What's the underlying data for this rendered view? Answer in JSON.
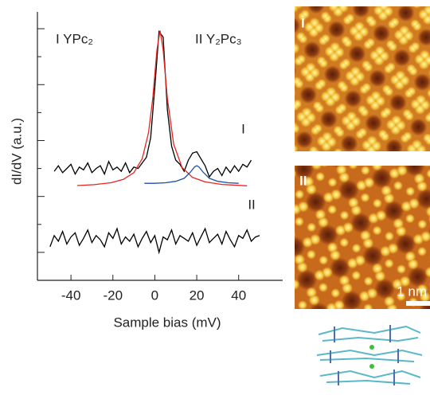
{
  "chart_data": {
    "type": "line",
    "xlabel": "Sample bias (mV)",
    "ylabel": "dI/dV (a.u.)",
    "annotations": [
      "I YPc₂",
      "II Y₂Pc₃"
    ],
    "xlim": [
      -56,
      61
    ],
    "xticks": [
      -40,
      -20,
      0,
      20,
      40
    ],
    "ylim": [
      0,
      9.6
    ],
    "yticks": [
      1,
      2,
      3,
      4,
      5,
      6,
      7,
      8,
      9
    ],
    "series": [
      {
        "name": "I",
        "color": "#000000",
        "x": [
          -48,
          -46,
          -44,
          -42,
          -40,
          -38,
          -36,
          -34,
          -32,
          -30,
          -28,
          -26,
          -24,
          -22,
          -20,
          -18,
          -16,
          -14,
          -12,
          -10,
          -8,
          -6,
          -4,
          -2,
          0,
          2,
          4,
          6,
          8,
          10,
          12,
          14,
          16,
          18,
          20,
          22,
          24,
          26,
          28,
          30,
          32,
          34,
          36,
          38,
          40,
          42,
          44,
          46
        ],
        "values": [
          3.9,
          4.1,
          3.85,
          4.0,
          4.15,
          3.8,
          4.05,
          3.95,
          4.2,
          3.85,
          4.0,
          4.1,
          3.8,
          4.25,
          3.95,
          4.05,
          3.9,
          4.2,
          3.85,
          4.05,
          4.0,
          4.2,
          4.4,
          5.1,
          6.9,
          8.9,
          8.7,
          6.1,
          4.8,
          4.3,
          4.15,
          3.9,
          4.3,
          4.55,
          4.6,
          4.35,
          4.1,
          3.7,
          3.9,
          4.0,
          3.75,
          4.05,
          3.85,
          4.1,
          3.9,
          4.15,
          4.05,
          4.3
        ]
      },
      {
        "color": "#e8231f",
        "x": [
          -37,
          -29,
          -21,
          -15,
          -10,
          -6,
          -3,
          -1,
          1,
          2.5,
          4,
          6,
          9,
          13,
          18,
          24,
          32,
          44
        ],
        "values": [
          3.39,
          3.42,
          3.49,
          3.61,
          3.85,
          4.35,
          5.28,
          6.5,
          8.24,
          8.93,
          8.24,
          6.5,
          4.87,
          4.04,
          3.68,
          3.52,
          3.43,
          3.38
        ]
      },
      {
        "color": "#1f4fa8",
        "x": [
          -5,
          0,
          5,
          10,
          14,
          17,
          19,
          20,
          21,
          23,
          26,
          30,
          35,
          40
        ],
        "values": [
          3.47,
          3.47,
          3.49,
          3.54,
          3.65,
          3.87,
          4.06,
          4.1,
          4.06,
          3.87,
          3.65,
          3.54,
          3.49,
          3.47
        ]
      },
      {
        "name": "II",
        "color": "#000000",
        "x": [
          -50,
          -48,
          -46,
          -44,
          -42,
          -40,
          -38,
          -36,
          -34,
          -32,
          -30,
          -28,
          -26,
          -24,
          -22,
          -20,
          -18,
          -16,
          -14,
          -12,
          -10,
          -8,
          -6,
          -4,
          -2,
          0,
          2,
          4,
          6,
          8,
          10,
          12,
          14,
          16,
          18,
          20,
          22,
          24,
          26,
          28,
          30,
          32,
          34,
          36,
          38,
          40,
          42,
          44,
          46,
          48,
          50
        ],
        "values": [
          1.2,
          1.6,
          1.4,
          1.75,
          1.3,
          1.55,
          1.7,
          1.25,
          1.5,
          1.8,
          1.35,
          1.6,
          1.45,
          1.2,
          1.7,
          1.5,
          1.85,
          1.3,
          1.55,
          1.4,
          1.65,
          1.2,
          1.5,
          1.75,
          1.35,
          1.6,
          1.0,
          1.55,
          1.45,
          1.8,
          1.3,
          1.6,
          1.5,
          1.4,
          1.7,
          1.25,
          1.55,
          1.85,
          1.35,
          1.5,
          1.65,
          1.3,
          1.75,
          1.45,
          1.2,
          1.6,
          1.5,
          1.8,
          1.4,
          1.55,
          1.6
        ]
      }
    ]
  },
  "images": {
    "panels": [
      "I",
      "II"
    ],
    "scale_bar": "1 nm"
  }
}
